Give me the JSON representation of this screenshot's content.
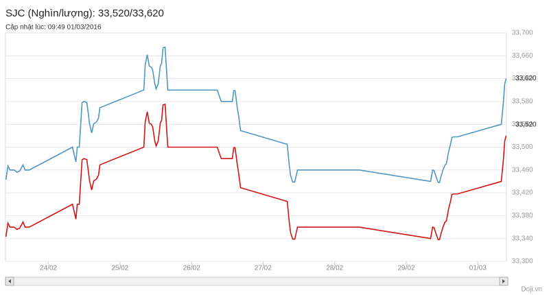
{
  "chart_data": {
    "type": "line",
    "title": "SJC (Nghìn/lượng): 33,520/33,620",
    "subtitle": "Cập nhật lúc: 09:49 01/03/2016",
    "source": "Doji.vn",
    "x": [
      23.406,
      23.434,
      23.463,
      23.521,
      23.559,
      23.597,
      23.645,
      23.674,
      23.732,
      24.336,
      24.384,
      24.403,
      24.431,
      24.47,
      24.499,
      24.537,
      24.575,
      24.604,
      24.633,
      24.671,
      24.7,
      24.719,
      25.333,
      25.352,
      25.381,
      25.409,
      25.438,
      25.457,
      25.486,
      25.505,
      25.534,
      25.563,
      25.582,
      25.601,
      25.63,
      25.668,
      26.359,
      26.397,
      26.416,
      26.57,
      26.589,
      26.608,
      26.637,
      26.656,
      26.685,
      27.337,
      27.365,
      27.384,
      27.413,
      27.442,
      27.48,
      28.343,
      29.34,
      29.369,
      29.388,
      29.417,
      29.446,
      29.465,
      29.484,
      29.513,
      29.542,
      29.561,
      29.59,
      29.618,
      29.638,
      29.657,
      29.714,
      30.328,
      30.357,
      30.376,
      30.395
    ],
    "series": [
      {
        "color": "#4f97bf",
        "end_label": "33,620",
        "values": [
          33443,
          33467,
          33460,
          33460,
          33456,
          33458,
          33469,
          33460,
          33460,
          33500,
          33474,
          33500,
          33500,
          33578,
          33580,
          33578,
          33541,
          33525,
          33541,
          33544,
          33551,
          33569,
          33600,
          33644,
          33662,
          33642,
          33640,
          33635,
          33611,
          33602,
          33611,
          33642,
          33647,
          33674,
          33675,
          33600,
          33600,
          33586,
          33580,
          33580,
          33599,
          33599,
          33571,
          33556,
          33529,
          33505,
          33469,
          33450,
          33439,
          33439,
          33460,
          33460,
          33440,
          33460,
          33459,
          33448,
          33438,
          33438,
          33448,
          33460,
          33469,
          33471,
          33491,
          33505,
          33517,
          33518,
          33518,
          33540,
          33578,
          33611,
          33620
        ]
      },
      {
        "color": "#d11414",
        "end_label": "33,520",
        "values": [
          33343,
          33367,
          33360,
          33360,
          33356,
          33358,
          33369,
          33360,
          33360,
          33400,
          33374,
          33400,
          33400,
          33478,
          33480,
          33478,
          33441,
          33425,
          33441,
          33444,
          33451,
          33469,
          33500,
          33544,
          33562,
          33542,
          33540,
          33535,
          33511,
          33502,
          33511,
          33542,
          33547,
          33574,
          33575,
          33500,
          33500,
          33486,
          33480,
          33480,
          33499,
          33499,
          33471,
          33456,
          33429,
          33405,
          33369,
          33350,
          33339,
          33339,
          33360,
          33360,
          33340,
          33360,
          33359,
          33348,
          33338,
          33338,
          33348,
          33360,
          33369,
          33371,
          33391,
          33405,
          33417,
          33418,
          33418,
          33440,
          33478,
          33511,
          33520
        ]
      }
    ],
    "xlim": [
      23.4,
      30.4
    ],
    "xticks": [
      {
        "value": 24,
        "label": "24/02"
      },
      {
        "value": 25,
        "label": "25/02"
      },
      {
        "value": 26,
        "label": "26/02"
      },
      {
        "value": 27,
        "label": "27/02"
      },
      {
        "value": 28,
        "label": "28/02"
      },
      {
        "value": 29,
        "label": "29/02"
      },
      {
        "value": 30,
        "label": "01/03"
      }
    ],
    "ylim": [
      33300,
      33700
    ],
    "yticks": [
      {
        "value": 33300,
        "label": "33,300"
      },
      {
        "value": 33340,
        "label": "33,340"
      },
      {
        "value": 33380,
        "label": "33,380"
      },
      {
        "value": 33420,
        "label": "33,420"
      },
      {
        "value": 33460,
        "label": "33,460"
      },
      {
        "value": 33500,
        "label": "33,500"
      },
      {
        "value": 33540,
        "label": "33,540"
      },
      {
        "value": 33580,
        "label": "33,580"
      },
      {
        "value": 33620,
        "label": "33,620"
      },
      {
        "value": 33660,
        "label": "33,660"
      },
      {
        "value": 33700,
        "label": "33,700"
      }
    ],
    "grid": true
  }
}
